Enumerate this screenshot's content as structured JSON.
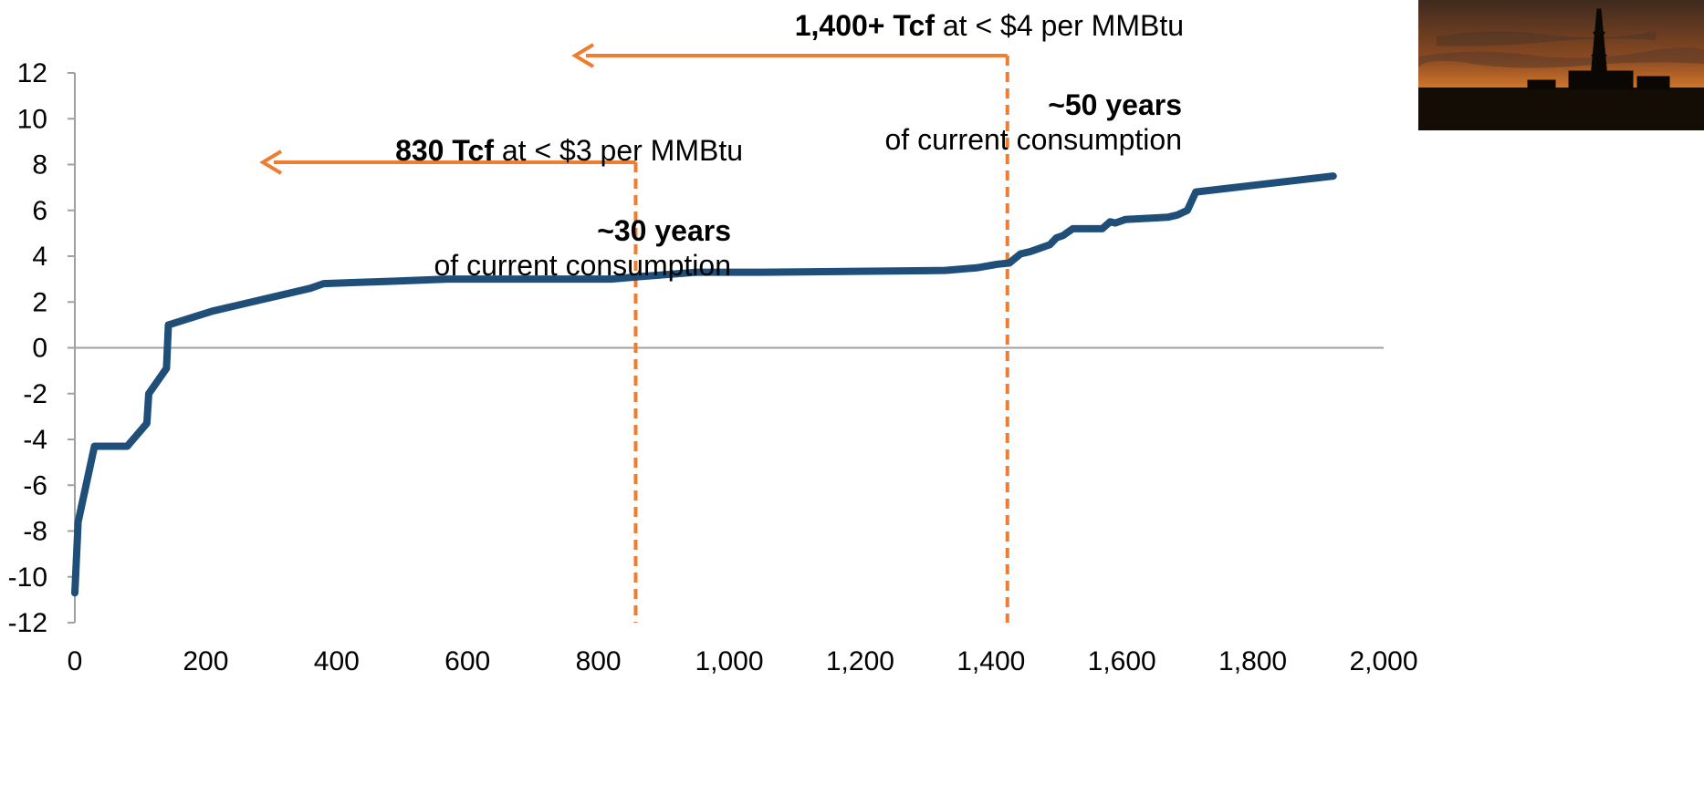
{
  "chart_data": {
    "type": "line",
    "title": "",
    "xlabel": "",
    "ylabel": "",
    "xlim": [
      0,
      2000
    ],
    "ylim": [
      -12,
      12
    ],
    "x_ticks": [
      "0",
      "200",
      "400",
      "600",
      "800",
      "1,000",
      "1,200",
      "1,400",
      "1,600",
      "1,800",
      "2,000"
    ],
    "y_ticks": [
      "12",
      "10",
      "8",
      "6",
      "4",
      "2",
      "0",
      "-2",
      "-4",
      "-6",
      "-8",
      "-10",
      "-12"
    ],
    "grid": false,
    "series": [
      {
        "color": "#1f4e79",
        "x": [
          0,
          2,
          5,
          30,
          80,
          110,
          113,
          140,
          143,
          210,
          360,
          380,
          480,
          570,
          820,
          860,
          950,
          1050,
          1250,
          1330,
          1380,
          1410,
          1428,
          1445,
          1460,
          1490,
          1500,
          1510,
          1525,
          1570,
          1582,
          1590,
          1605,
          1670,
          1685,
          1700,
          1713,
          1923
        ],
        "y": [
          -10.7,
          -9.5,
          -7.6,
          -4.3,
          -4.3,
          -3.3,
          -2.0,
          -0.9,
          1.0,
          1.6,
          2.6,
          2.8,
          2.9,
          3.0,
          3.0,
          3.1,
          3.3,
          3.3,
          3.35,
          3.38,
          3.5,
          3.65,
          3.7,
          4.1,
          4.2,
          4.5,
          4.8,
          4.9,
          5.2,
          5.2,
          5.5,
          5.45,
          5.6,
          5.7,
          5.8,
          6.0,
          6.8,
          7.5
        ]
      }
    ],
    "markers": [
      {
        "x": 857,
        "color": "#ed7d31"
      },
      {
        "x": 1425,
        "color": "#ed7d31"
      }
    ]
  },
  "annotations": {
    "a30": {
      "bold": "830 Tcf",
      "rest": " at < $3 per MMBtu",
      "years_bold": "~30 years",
      "years_rest": "of current consumption"
    },
    "a50": {
      "bold": "1,400+ Tcf",
      "rest": " at < $4 per MMBtu",
      "years_bold": "~50 years",
      "years_rest": "of current consumption"
    }
  },
  "colors": {
    "line": "#1f4e79",
    "arrow": "#ed7d31",
    "axis": "#a0a0a0"
  },
  "photo": {
    "icon": "drilling-rig-sunset-photo"
  }
}
